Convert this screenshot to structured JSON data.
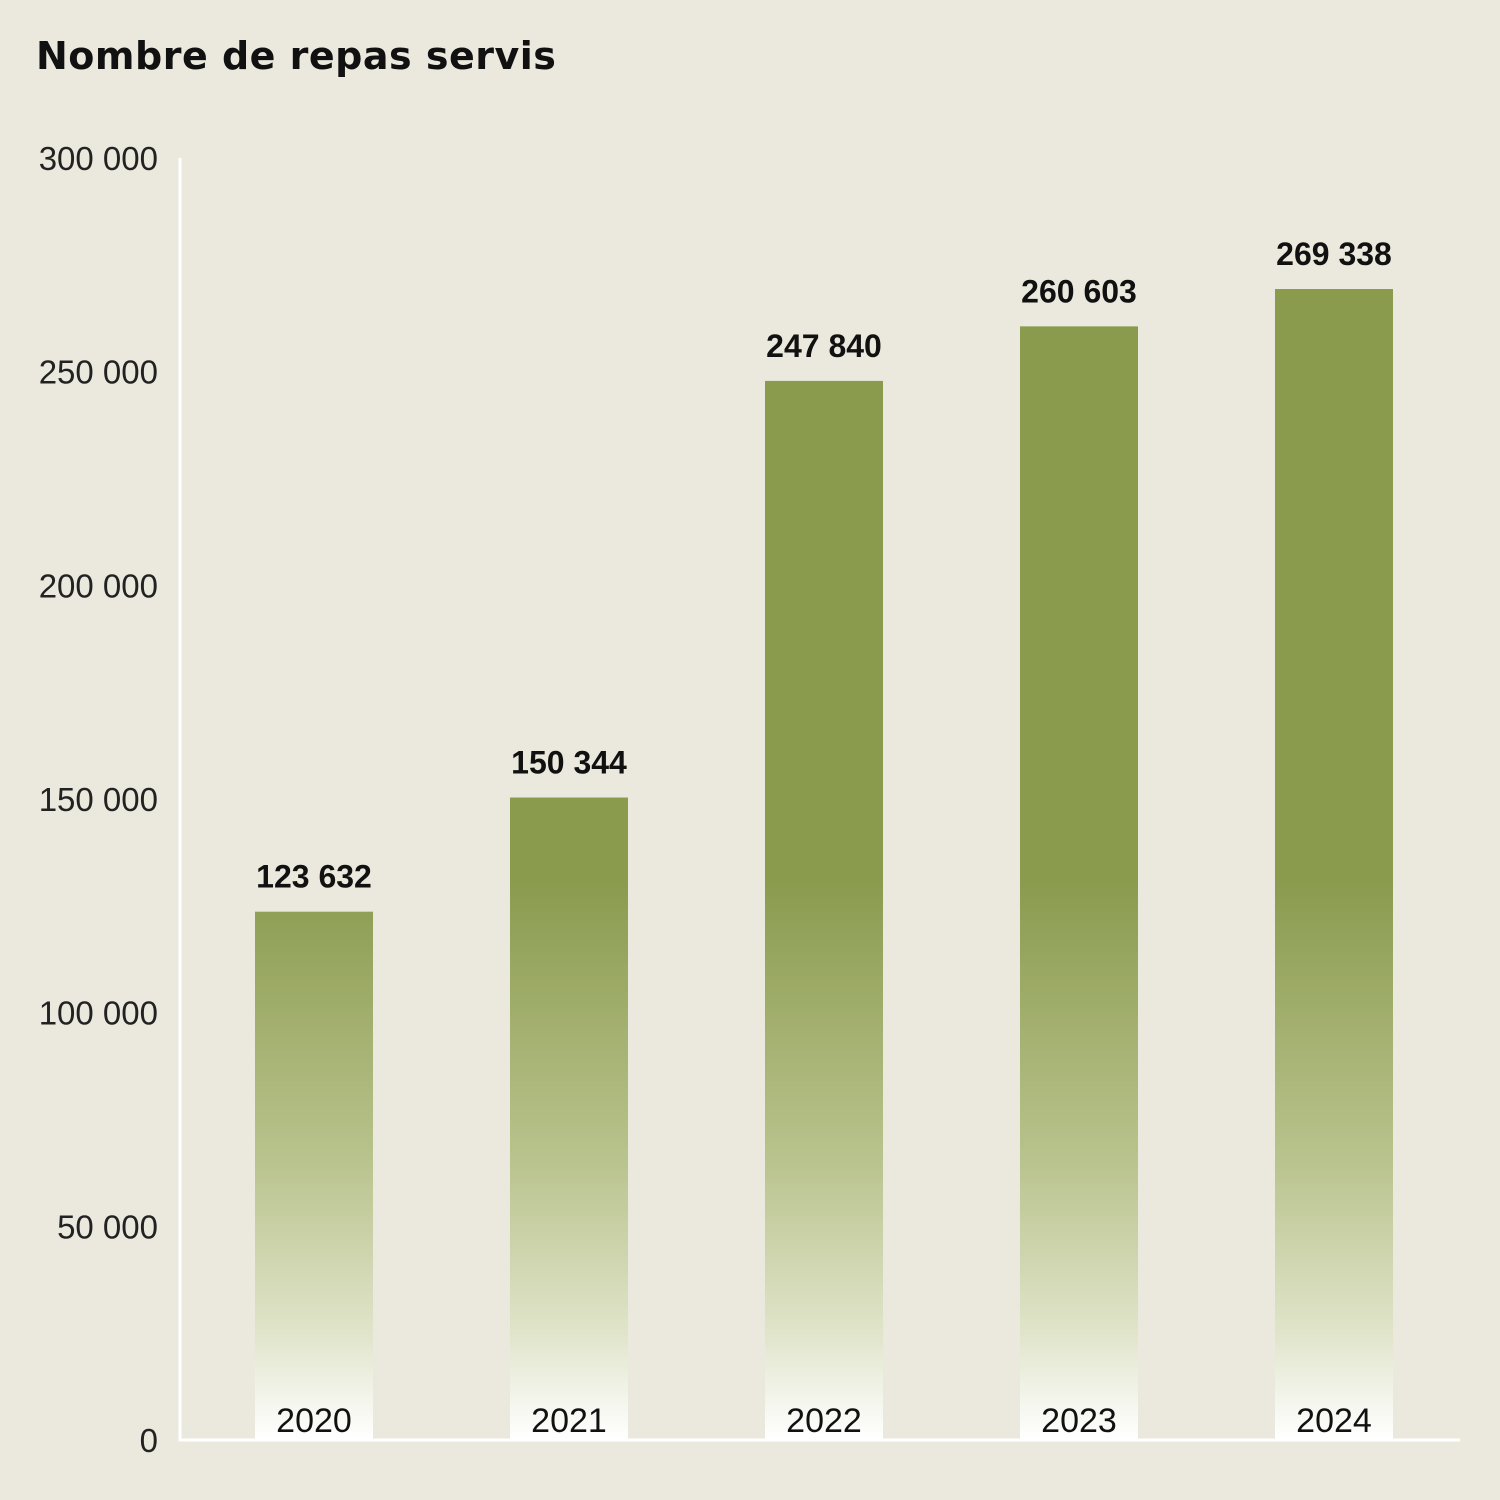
{
  "chart_data": {
    "type": "bar",
    "title": "Nombre de repas servis",
    "categories": [
      "2020",
      "2021",
      "2022",
      "2023",
      "2024"
    ],
    "values": [
      123632,
      150344,
      247840,
      260603,
      269338
    ],
    "value_labels": [
      "123 632",
      "150 344",
      "247 840",
      "260 603",
      "269 338"
    ],
    "ylim": [
      0,
      300000
    ],
    "yticks": [
      0,
      50000,
      100000,
      150000,
      200000,
      250000,
      300000
    ],
    "ytick_labels": [
      "0",
      "50 000",
      "100 000",
      "150 000",
      "200 000",
      "250 000",
      "300 000"
    ],
    "xlabel": "",
    "ylabel": "",
    "grid": false,
    "colors": {
      "bar_top": "#8a9b4e",
      "bar_bottom": "#ffffff",
      "background": "#ebe9dd",
      "axis": "#ffffff"
    }
  }
}
